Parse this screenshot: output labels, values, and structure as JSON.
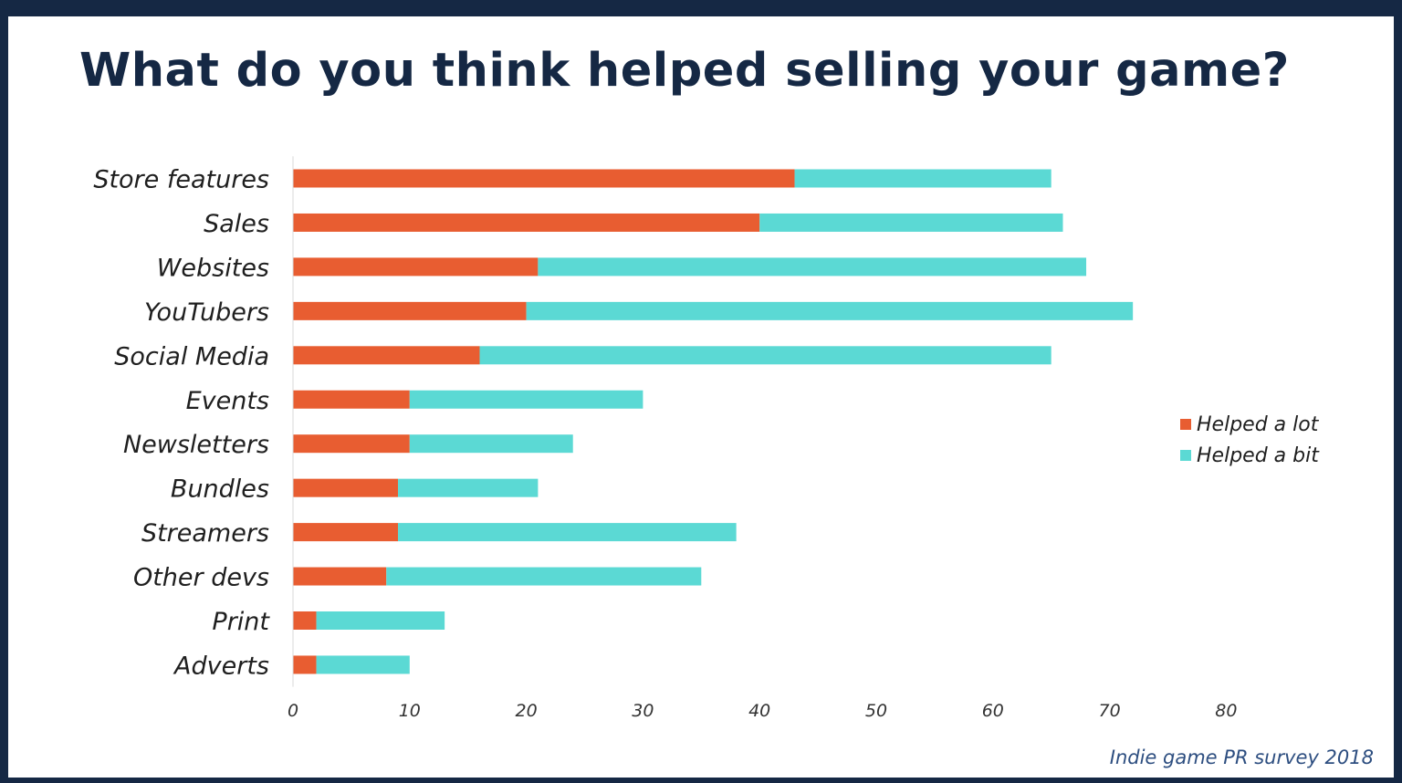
{
  "chart_data": {
    "type": "bar",
    "orientation": "horizontal",
    "stacked": true,
    "title": "What do you think helped selling your game?",
    "categories": [
      "Store features",
      "Sales",
      "Websites",
      "YouTubers",
      "Social Media",
      "Events",
      "Newsletters",
      "Bundles",
      "Streamers",
      "Other devs",
      "Print",
      "Adverts"
    ],
    "series": [
      {
        "name": "Helped a lot",
        "color": "#e85d31",
        "values": [
          43,
          40,
          21,
          20,
          16,
          10,
          10,
          9,
          9,
          8,
          2,
          2
        ]
      },
      {
        "name": "Helped a bit",
        "color": "#5bd9d4",
        "values": [
          22,
          26,
          47,
          52,
          49,
          20,
          14,
          12,
          29,
          27,
          11,
          8
        ]
      }
    ],
    "xlim": [
      0,
      80
    ],
    "xticks": [
      "0",
      "10",
      "20",
      "30",
      "40",
      "50",
      "60",
      "70",
      "80"
    ],
    "grid": false,
    "legend_position": "right"
  },
  "source": "Indie game PR survey 2018"
}
